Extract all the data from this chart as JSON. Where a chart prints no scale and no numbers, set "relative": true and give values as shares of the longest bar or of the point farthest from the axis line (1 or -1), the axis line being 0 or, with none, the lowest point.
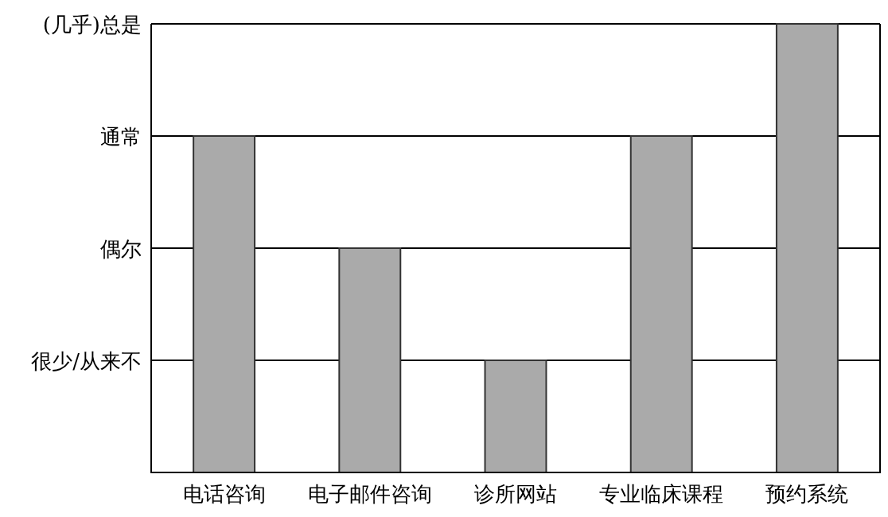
{
  "chart_data": {
    "type": "bar",
    "categories": [
      "电话咨询",
      "电子邮件咨询",
      "诊所网站",
      "专业临床课程",
      "预约系统"
    ],
    "values": [
      0.75,
      0.5,
      0.25,
      0.75,
      1
    ],
    "relative": true,
    "color": "#aaaaaa",
    "ref_lines": [
      {
        "axis": "y",
        "value": 0.25,
        "label": "很少/从来不",
        "color": "#000000"
      },
      {
        "axis": "y",
        "value": 0.5,
        "label": "偶尔",
        "color": "#000000"
      },
      {
        "axis": "y",
        "value": 0.75,
        "label": "通常",
        "color": "#000000"
      },
      {
        "axis": "y",
        "value": 1,
        "label": "(几乎)总是",
        "color": "#000000"
      }
    ]
  }
}
